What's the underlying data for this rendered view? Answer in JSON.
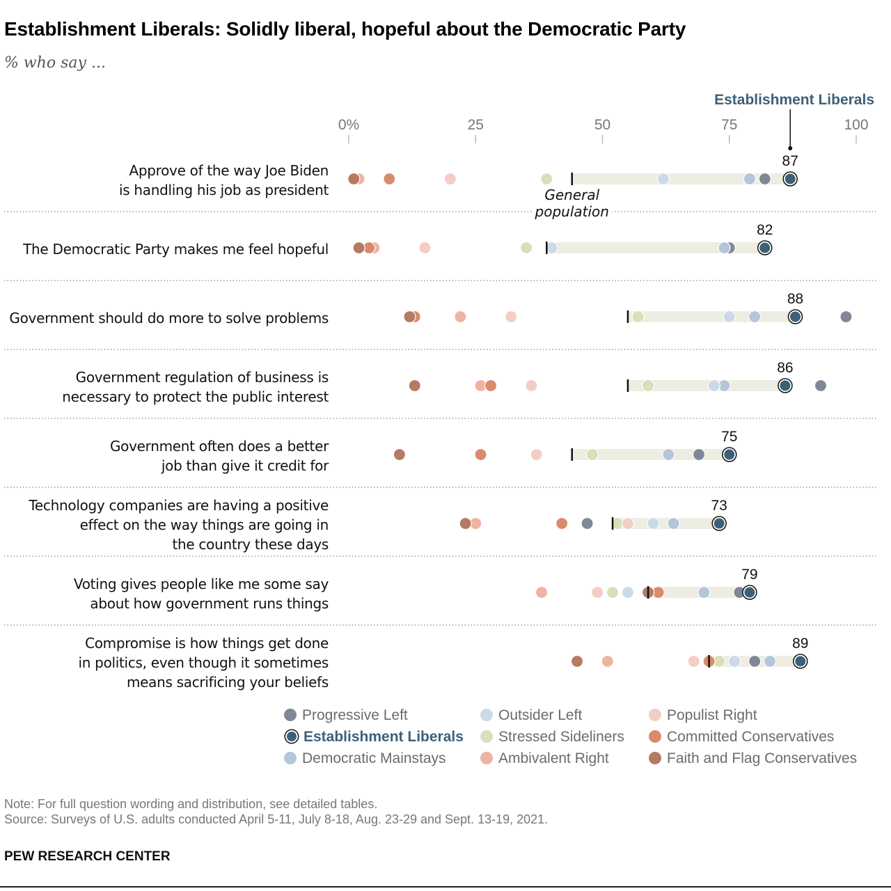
{
  "title": "Establishment Liberals: Solidly liberal, hopeful about the Democratic Party",
  "subtitle": "% who say ...",
  "note": "Note: For full question wording and distribution, see detailed tables.",
  "source": "Source: Surveys of U.S. adults conducted April 5-11, July 8-18, Aug. 23-29 and Sept. 13-19, 2021.",
  "brand": "PEW RESEARCH CENTER",
  "chart_data": {
    "type": "scatter",
    "subtype": "dot-plot",
    "title": "Establishment Liberals: Solidly liberal, hopeful about the Democratic Party",
    "subtitle": "% who say ...",
    "xlim": [
      0,
      100
    ],
    "x_ticks": [
      0,
      25,
      50,
      75,
      100
    ],
    "x_tick_labels": [
      "0%",
      "25",
      "50",
      "75",
      "100"
    ],
    "highlight_group": "Establishment Liberals",
    "highlight_callout": "Establishment Liberals",
    "general_population_label": "General population",
    "groups": [
      {
        "key": "progressive_left",
        "name": "Progressive Left",
        "color": "#808796"
      },
      {
        "key": "establishment_liberals",
        "name": "Establishment Liberals",
        "color": "#3d6079",
        "highlight": true
      },
      {
        "key": "democratic_mainstays",
        "name": "Democratic Mainstays",
        "color": "#b4c6d9"
      },
      {
        "key": "outsider_left",
        "name": "Outsider Left",
        "color": "#ccd9e6"
      },
      {
        "key": "stressed_sideliners",
        "name": "Stressed Sideliners",
        "color": "#d9dfba"
      },
      {
        "key": "ambivalent_right",
        "name": "Ambivalent Right",
        "color": "#f0b2a3"
      },
      {
        "key": "populist_right",
        "name": "Populist Right",
        "color": "#f4cdc4"
      },
      {
        "key": "committed_conservatives",
        "name": "Committed Conservatives",
        "color": "#d98b6c"
      },
      {
        "key": "faith_and_flag_conservatives",
        "name": "Faith and Flag Conservatives",
        "color": "#b57a64"
      }
    ],
    "rows": [
      {
        "label": "Approve of the way Joe Biden\nis handling his job as president",
        "general_population": 44,
        "values": {
          "progressive_left": 82,
          "establishment_liberals": 87,
          "democratic_mainstays": 79,
          "outsider_left": 62,
          "stressed_sideliners": 39,
          "ambivalent_right": 2,
          "populist_right": 20,
          "committed_conservatives": 8,
          "faith_and_flag_conservatives": 1
        }
      },
      {
        "label": "The Democratic Party makes me feel hopeful",
        "general_population": 39,
        "values": {
          "progressive_left": 75,
          "establishment_liberals": 82,
          "democratic_mainstays": 74,
          "outsider_left": 40,
          "stressed_sideliners": 35,
          "ambivalent_right": 5,
          "populist_right": 15,
          "committed_conservatives": 4,
          "faith_and_flag_conservatives": 2
        }
      },
      {
        "label": "Government should do more to solve problems",
        "general_population": 55,
        "values": {
          "progressive_left": 98,
          "establishment_liberals": 88,
          "democratic_mainstays": 80,
          "outsider_left": 75,
          "stressed_sideliners": 57,
          "ambivalent_right": 22,
          "populist_right": 32,
          "committed_conservatives": 13,
          "faith_and_flag_conservatives": 12
        }
      },
      {
        "label": "Government regulation of business is\nnecessary to protect the public interest",
        "general_population": 55,
        "values": {
          "progressive_left": 93,
          "establishment_liberals": 86,
          "democratic_mainstays": 74,
          "outsider_left": 72,
          "stressed_sideliners": 59,
          "ambivalent_right": 26,
          "populist_right": 36,
          "committed_conservatives": 28,
          "faith_and_flag_conservatives": 13
        }
      },
      {
        "label": "Government often does a better\njob than give it credit for",
        "general_population": 44,
        "values": {
          "progressive_left": 69,
          "establishment_liberals": 75,
          "democratic_mainstays": 63,
          "outsider_left": 48,
          "stressed_sideliners": 48,
          "ambivalent_right": 10,
          "populist_right": 37,
          "committed_conservatives": 26,
          "faith_and_flag_conservatives": 10
        }
      },
      {
        "label": "Technology companies are having a positive\neffect on the way things are going in\nthe country these days",
        "general_population": 52,
        "values": {
          "progressive_left": 47,
          "establishment_liberals": 73,
          "democratic_mainstays": 64,
          "outsider_left": 60,
          "stressed_sideliners": 53,
          "ambivalent_right": 25,
          "populist_right": 55,
          "committed_conservatives": 42,
          "faith_and_flag_conservatives": 23
        }
      },
      {
        "label": "Voting gives people like me some say\nabout how government runs things",
        "general_population": 59,
        "values": {
          "progressive_left": 77,
          "establishment_liberals": 79,
          "democratic_mainstays": 70,
          "outsider_left": 55,
          "stressed_sideliners": 52,
          "ambivalent_right": 38,
          "populist_right": 49,
          "committed_conservatives": 61,
          "faith_and_flag_conservatives": 59
        }
      },
      {
        "label": "Compromise is how things get done\nin politics, even though it sometimes\nmeans sacrificing your beliefs",
        "general_population": 71,
        "values": {
          "progressive_left": 80,
          "establishment_liberals": 89,
          "democratic_mainstays": 83,
          "outsider_left": 76,
          "stressed_sideliners": 73,
          "ambivalent_right": 51,
          "populist_right": 68,
          "committed_conservatives": 71,
          "faith_and_flag_conservatives": 45
        }
      }
    ]
  },
  "legend": [
    {
      "key": "progressive_left",
      "label": "Progressive Left"
    },
    {
      "key": "establishment_liberals",
      "label": "Establishment Liberals"
    },
    {
      "key": "democratic_mainstays",
      "label": "Democratic Mainstays"
    },
    {
      "key": "outsider_left",
      "label": "Outsider Left"
    },
    {
      "key": "stressed_sideliners",
      "label": "Stressed Sideliners"
    },
    {
      "key": "ambivalent_right",
      "label": "Ambivalent Right"
    },
    {
      "key": "populist_right",
      "label": "Populist Right"
    },
    {
      "key": "committed_conservatives",
      "label": "Committed Conservatives"
    },
    {
      "key": "faith_and_flag_conservatives",
      "label": "Faith and Flag Conservatives"
    }
  ]
}
